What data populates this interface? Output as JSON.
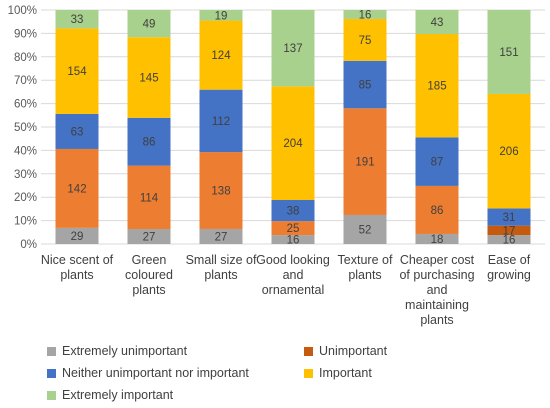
{
  "chart_data": {
    "type": "bar",
    "stacked": "percent",
    "categories": [
      [
        "Nice scent of",
        "plants"
      ],
      [
        "Green",
        "coloured",
        "plants"
      ],
      [
        "Small size of",
        "plants"
      ],
      [
        "Good looking",
        "and",
        "ornamental"
      ],
      [
        "Texture of",
        "plants"
      ],
      [
        "Cheaper cost",
        "of purchasing",
        "and",
        "maintaining",
        "plants"
      ],
      [
        "Ease of",
        "growing"
      ]
    ],
    "series": [
      {
        "name": "Extremely unimportant",
        "color": "#A5A5A5",
        "values": [
          29,
          27,
          27,
          16,
          52,
          18,
          16
        ]
      },
      {
        "name": "Unimportant",
        "color": "#C55A11",
        "values": [
          null,
          null,
          null,
          null,
          null,
          null,
          17
        ]
      },
      {
        "name": "Neither unimportant nor important",
        "color": "#4472C4",
        "values": [
          63,
          86,
          112,
          38,
          85,
          87,
          31
        ]
      },
      {
        "name": "Important",
        "color": "#FFC000",
        "values": [
          154,
          145,
          124,
          204,
          75,
          185,
          206
        ]
      },
      {
        "name": "Extremely important",
        "color": "#A9D18E",
        "values": [
          33,
          49,
          19,
          137,
          16,
          43,
          151
        ]
      }
    ],
    "orange_segment": {
      "color": "#ED7D31",
      "values": [
        142,
        114,
        138,
        25,
        191,
        86,
        null
      ]
    },
    "yticks": [
      "0%",
      "10%",
      "20%",
      "30%",
      "40%",
      "50%",
      "60%",
      "70%",
      "80%",
      "90%",
      "100%"
    ],
    "ylim": [
      0,
      100
    ],
    "grid": true,
    "legend_position": "bottom"
  }
}
